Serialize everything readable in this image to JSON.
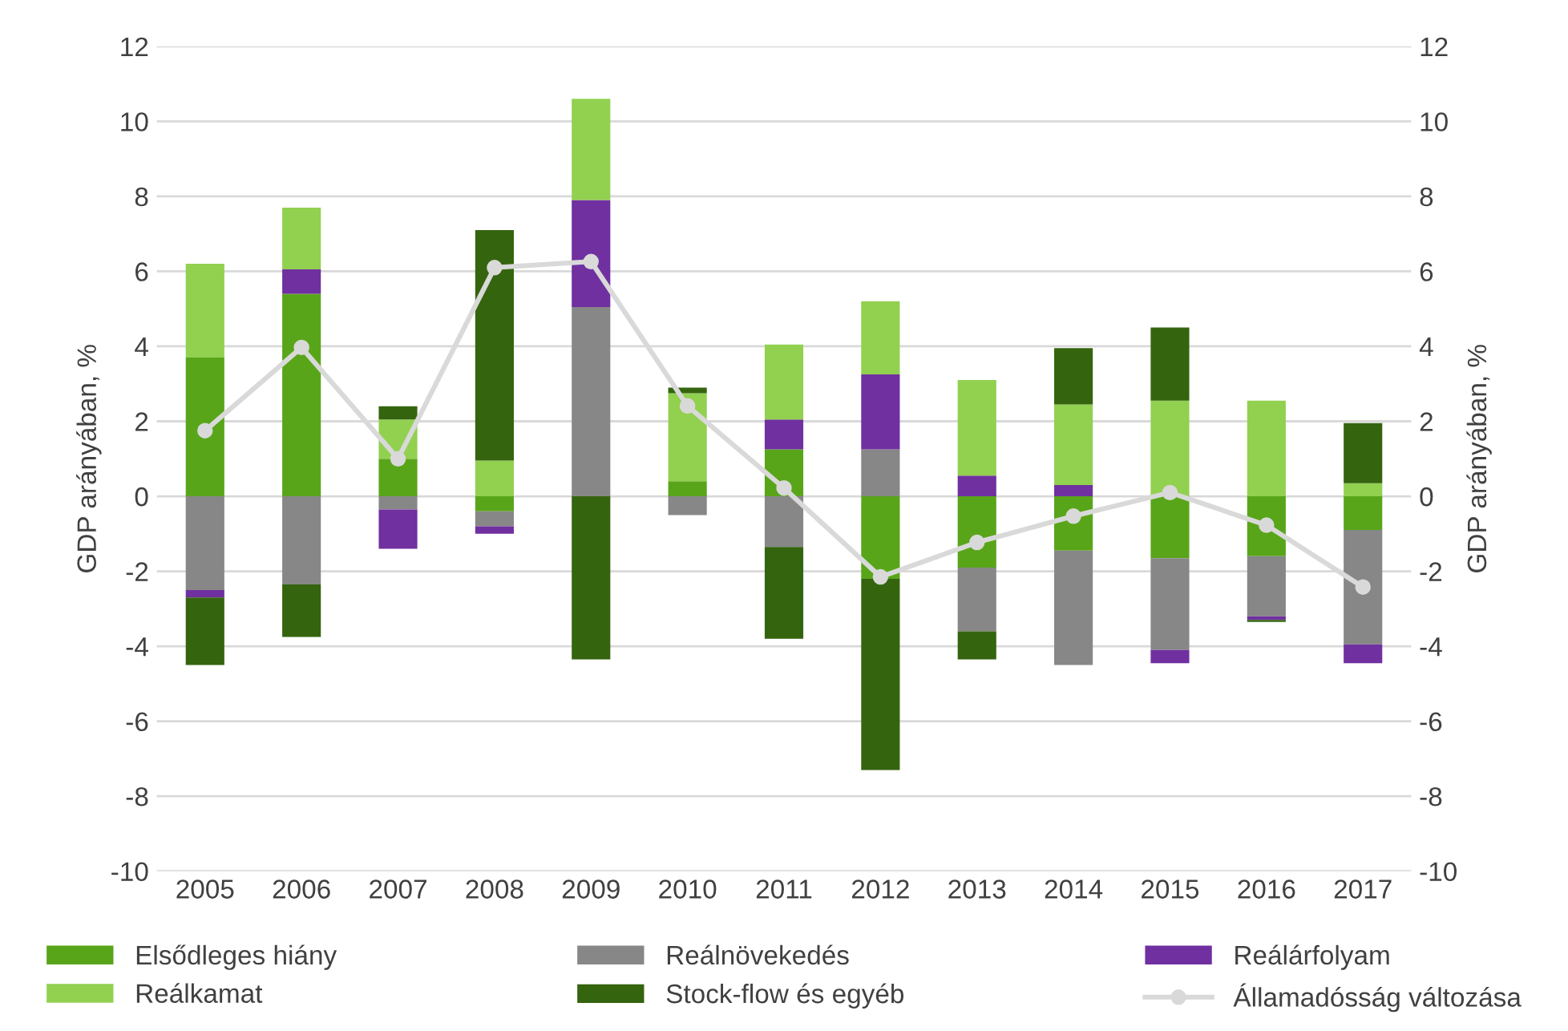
{
  "chart_data": {
    "type": "bar",
    "stacked": true,
    "ylabel": "GDP arányában, %",
    "y2label": "GDP arányában, %",
    "categories": [
      "2005",
      "2006",
      "2007",
      "2008",
      "2009",
      "2010",
      "2011",
      "2012",
      "2013",
      "2014",
      "2015",
      "2016",
      "2017"
    ],
    "series": [
      {
        "name": "Elsődleges hiány",
        "color": "#58a51a",
        "values": [
          3.7,
          5.4,
          1.0,
          -0.4,
          0,
          0.4,
          1.25,
          -2.2,
          -1.9,
          -1.45,
          -1.65,
          -1.6,
          -0.9
        ]
      },
      {
        "name": "Reálnövekedés",
        "color": "#878787",
        "values": [
          -2.5,
          -2.35,
          -0.35,
          -0.4,
          5.05,
          -0.5,
          -1.35,
          1.25,
          -1.7,
          -3.05,
          -2.45,
          -1.6,
          -3.05
        ]
      },
      {
        "name": "Reálárfolyam",
        "color": "#7030a0",
        "values": [
          -0.2,
          0.65,
          -1.05,
          -0.2,
          2.85,
          0,
          0.8,
          2.0,
          0.55,
          0.3,
          -0.35,
          -0.1,
          -0.5
        ]
      },
      {
        "name": "Reálkamat",
        "color": "#92d050",
        "values": [
          2.5,
          1.65,
          1.05,
          0.95,
          2.7,
          2.35,
          2.0,
          1.95,
          2.55,
          2.15,
          2.55,
          2.55,
          0.35
        ]
      },
      {
        "name": "Stock-flow és egyéb",
        "color": "#35640f",
        "values": [
          -1.8,
          -1.4,
          0.35,
          6.15,
          -4.35,
          0.15,
          -2.45,
          -5.1,
          -0.75,
          1.5,
          1.95,
          -0.05,
          1.6
        ]
      },
      {
        "name": "Államadósság változása",
        "type": "line",
        "color": "#d9d9d9",
        "marker": "circle",
        "values": [
          1.75,
          3.97,
          1.0,
          6.1,
          6.26,
          2.41,
          0.22,
          -2.15,
          -1.23,
          -0.53,
          0.1,
          -0.77,
          -2.42
        ]
      }
    ],
    "ylim": [
      -10,
      12
    ],
    "yticks": [
      -10,
      -8,
      -6,
      -4,
      -2,
      0,
      2,
      4,
      6,
      8,
      10,
      12
    ],
    "y2lim": [
      -10,
      12
    ],
    "y2ticks": [
      -10,
      -8,
      -6,
      -4,
      -2,
      0,
      2,
      4,
      6,
      8,
      10,
      12
    ],
    "grid": "y",
    "legend": "bottom"
  }
}
